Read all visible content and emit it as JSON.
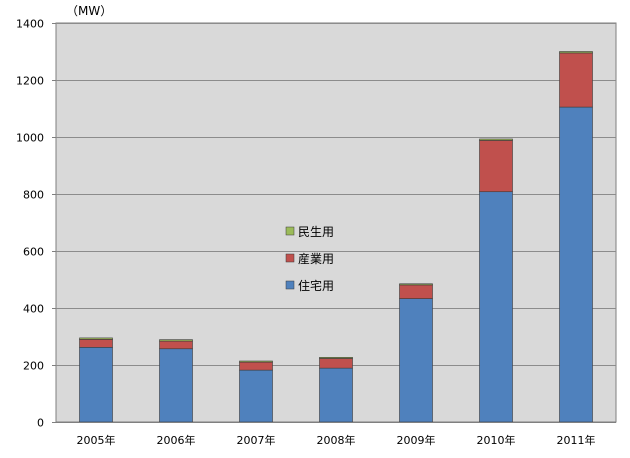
{
  "chart_data": {
    "type": "bar",
    "stacked": true,
    "unit_label": "（MW）",
    "categories": [
      "2005年",
      "2006年",
      "2007年",
      "2008年",
      "2009年",
      "2010年",
      "2011年"
    ],
    "series": [
      {
        "name": "住宅用",
        "color": "#4F81BD",
        "values": [
          262,
          257,
          182,
          189,
          433,
          808,
          1105
        ]
      },
      {
        "name": "産業用",
        "color": "#C0504D",
        "values": [
          28,
          27,
          28,
          34,
          48,
          180,
          190
        ]
      },
      {
        "name": "民生用",
        "color": "#9BBB59",
        "values": [
          5,
          5,
          4,
          4,
          4,
          5,
          5
        ]
      }
    ],
    "ylim": [
      0,
      1400
    ],
    "yticks": [
      0,
      200,
      400,
      600,
      800,
      1000,
      1200,
      1400
    ],
    "grid": true,
    "legend_order": [
      "民生用",
      "産業用",
      "住宅用"
    ],
    "legend_position": "inside-center",
    "plot_background": "#D9D9D9",
    "gridline_color": "#8C8C8C"
  }
}
